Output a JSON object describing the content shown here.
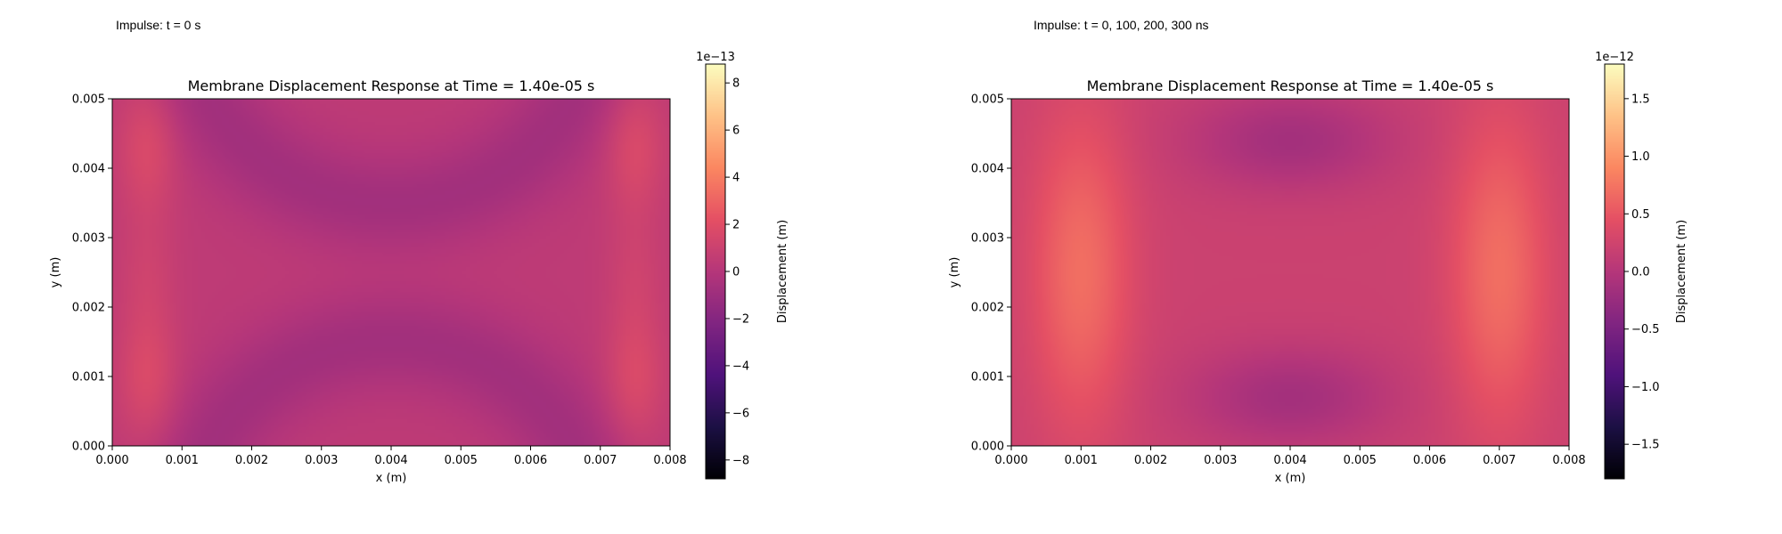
{
  "panels": [
    {
      "label": "Impulse: t = 0 s",
      "chart_data": {
        "type": "heatmap",
        "title": "Membrane Displacement Response at Time = 1.40e-05 s",
        "xlabel": "x (m)",
        "ylabel": "y (m)",
        "xlim": [
          0,
          0.008
        ],
        "ylim": [
          0,
          0.005
        ],
        "xticks": [
          "0.000",
          "0.001",
          "0.002",
          "0.003",
          "0.004",
          "0.005",
          "0.006",
          "0.007",
          "0.008"
        ],
        "yticks": [
          "0.000",
          "0.001",
          "0.002",
          "0.003",
          "0.004",
          "0.005"
        ],
        "colorbar": {
          "label": "Displacement (m)",
          "offset_text": "1e−13",
          "scale": 1e-13,
          "vmin": -8.8,
          "vmax": 8.8,
          "tick_values": [
            -8,
            -6,
            -4,
            -2,
            0,
            2,
            4,
            6,
            8
          ],
          "tick_labels": [
            "−8",
            "−6",
            "−4",
            "−2",
            "0",
            "2",
            "4",
            "6",
            "8"
          ],
          "colormap": "magma"
        },
        "field": {
          "units": "1e-13 m",
          "base": 0.4,
          "components": [
            {
              "x0": 0.0005,
              "y0": 0.0043,
              "sx": 0.0003,
              "sy": 0.0007,
              "amp": 1.3
            },
            {
              "x0": 0.0005,
              "y0": 0.001,
              "sx": 0.0003,
              "sy": 0.0007,
              "amp": 1.3
            },
            {
              "x0": 0.0075,
              "y0": 0.0043,
              "sx": 0.0003,
              "sy": 0.0007,
              "amp": 1.3
            },
            {
              "x0": 0.0075,
              "y0": 0.001,
              "sx": 0.0003,
              "sy": 0.0007,
              "amp": 1.3
            },
            {
              "x0": 0.0005,
              "y0": 0.0025,
              "sx": 0.0003,
              "sy": 0.0006,
              "amp": 0.6
            },
            {
              "x0": 0.0075,
              "y0": 0.0025,
              "sx": 0.0003,
              "sy": 0.0006,
              "amp": 0.6
            },
            {
              "ring": true,
              "cx": 0.004,
              "cy": 0.0065,
              "r": 0.003,
              "w": 0.0005,
              "amp": -1.2
            },
            {
              "ring": true,
              "cx": 0.004,
              "cy": -0.0015,
              "r": 0.003,
              "w": 0.0005,
              "amp": -1.2
            }
          ]
        }
      }
    },
    {
      "label": "Impulse: t = 0, 100, 200, 300 ns",
      "chart_data": {
        "type": "heatmap",
        "title": "Membrane Displacement Response at Time = 1.40e-05 s",
        "xlabel": "x (m)",
        "ylabel": "y (m)",
        "xlim": [
          0,
          0.008
        ],
        "ylim": [
          0,
          0.005
        ],
        "xticks": [
          "0.000",
          "0.001",
          "0.002",
          "0.003",
          "0.004",
          "0.005",
          "0.006",
          "0.007",
          "0.008"
        ],
        "yticks": [
          "0.000",
          "0.001",
          "0.002",
          "0.003",
          "0.004",
          "0.005"
        ],
        "colorbar": {
          "label": "Displacement (m)",
          "offset_text": "1e−12",
          "scale": 1e-12,
          "vmin": -1.8,
          "vmax": 1.8,
          "tick_values": [
            -1.5,
            -1.0,
            -0.5,
            0.0,
            0.5,
            1.0,
            1.5
          ],
          "tick_labels": [
            "−1.5",
            "−1.0",
            "−0.5",
            "0.0",
            "0.5",
            "1.0",
            "1.5"
          ],
          "colormap": "magma"
        },
        "field": {
          "units": "1e-12 m",
          "base": 0.2,
          "components": [
            {
              "x0": 0.001,
              "y0": 0.0025,
              "sx": 0.0005,
              "sy": 0.0016,
              "amp": 0.5
            },
            {
              "x0": 0.007,
              "y0": 0.0025,
              "sx": 0.0005,
              "sy": 0.0016,
              "amp": 0.5
            },
            {
              "x0": 0.004,
              "y0": 0.0044,
              "sx": 0.001,
              "sy": 0.0005,
              "amp": -0.35
            },
            {
              "x0": 0.004,
              "y0": 0.0007,
              "sx": 0.001,
              "sy": 0.0005,
              "amp": -0.35
            }
          ]
        }
      }
    }
  ]
}
